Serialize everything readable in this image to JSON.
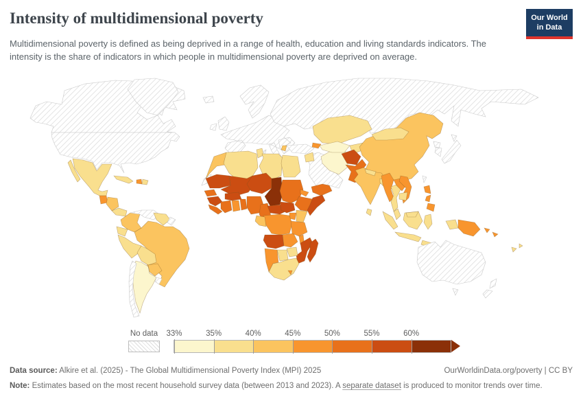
{
  "header": {
    "title": "Intensity of multidimensional poverty",
    "subtitle": "Multidimensional poverty is defined as being deprived in a range of health, education and living standards indicators. The intensity is the share of indicators in which people in multidimensional poverty are deprived on average.",
    "logo": {
      "line1": "Our World",
      "line2": "in Data"
    }
  },
  "legend": {
    "no_data_label": "No data",
    "tick_labels": [
      "33%",
      "35%",
      "40%",
      "45%",
      "50%",
      "55%",
      "60%"
    ]
  },
  "footer": {
    "data_source_label": "Data source:",
    "data_source_text": " Alkire et al. (2025) - The Global Multidimensional Poverty Index (MPI) 2025",
    "attribution_url": "OurWorldinData.org/poverty",
    "attribution_sep": " | ",
    "attribution_license": "CC BY",
    "note_label": "Note:",
    "note_before_link": " Estimates based on the most recent household survey data (between 2013 and 2023). A ",
    "note_link": "separate dataset",
    "note_after_link": " is produced to monitor trends over time."
  },
  "chart_data": {
    "type": "choropleth",
    "title": "Intensity of multidimensional poverty",
    "unit": "%",
    "bins": [
      "33-35%",
      "35-40%",
      "40-45%",
      "45-50%",
      "50-55%",
      "55-60%",
      "60%+"
    ],
    "colors": [
      "#FCF6CD",
      "#F9DF8E",
      "#FBC45F",
      "#F8952E",
      "#E8711B",
      "#CB4D12",
      "#8B3008"
    ],
    "no_data_style": "diagonal-hatch",
    "countries": {
      "Mexico": 1,
      "Guatemala": 3,
      "Honduras & Nicaragua": 2,
      "Costa Rica & Panama": 1,
      "Cuba": 1,
      "Haiti": 3,
      "Dominican Republic": 1,
      "Colombia": 2,
      "Ecuador": 1,
      "Peru": 1,
      "Brazil": 2,
      "Bolivia": 1,
      "Paraguay": 2,
      "Argentina": 0,
      "Guyana & Suriname": 1,
      "Morocco": 2,
      "Algeria": 1,
      "Tunisia": 1,
      "Libya": 1,
      "Egypt": 1,
      "Mauritania": 5,
      "Mali": 5,
      "Niger": 5,
      "Chad": 6,
      "Sudan": 4,
      "Eritrea": 3,
      "Ethiopia": 4,
      "Somalia": 5,
      "Senegal": 4,
      "Guinea": 5,
      "Sierra Leone & Liberia": 4,
      "Cote d'Ivoire": 4,
      "Ghana": 3,
      "Togo & Benin": 4,
      "Burkina Faso": 5,
      "Nigeria": 4,
      "Cameroon": 4,
      "Central African Republic": 5,
      "South Sudan": 5,
      "Uganda": 3,
      "Kenya": 2,
      "Democratic Republic of Congo": 3,
      "Congo & Gabon": 2,
      "Angola": 5,
      "Zambia": 3,
      "Tanzania": 3,
      "Malawi": 3,
      "Mozambique": 5,
      "Zimbabwe": 1,
      "Botswana": 1,
      "Namibia": 3,
      "South Africa": 1,
      "Lesotho": 3,
      "Madagascar": 5,
      "Syria": 1,
      "Iran": 0,
      "Yemen": 4,
      "Armenia & Azerbaijan": 3,
      "Albania": 2,
      "Kazakhstan": 1,
      "Turkmenistan & Uzbekistan": 0,
      "Kyrgyzstan & Tajikistan": 1,
      "Afghanistan": 5,
      "Pakistan": 4,
      "India": 2,
      "Nepal": 1,
      "Bangladesh": 1,
      "Sri Lanka": 1,
      "China": 2,
      "Mongolia": 1,
      "Myanmar": 3,
      "Thailand": 1,
      "Laos": 3,
      "Vietnam": 3,
      "Cambodia": 1,
      "Malaysia": 1,
      "Indonesia": 1,
      "Philippines": 3,
      "Papua New Guinea": 3,
      "Solomon Islands": 3,
      "Fiji": 1
    },
    "no_data": [
      "Canada",
      "United States",
      "Greenland",
      "Venezuela",
      "French Guiana",
      "Chile",
      "Uruguay",
      "Europe",
      "Russia",
      "Turkey",
      "Western Sahara",
      "Saudi Arabia & Gulf States",
      "Japan",
      "North & South Korea",
      "Taiwan",
      "Australia",
      "New Zealand"
    ]
  }
}
